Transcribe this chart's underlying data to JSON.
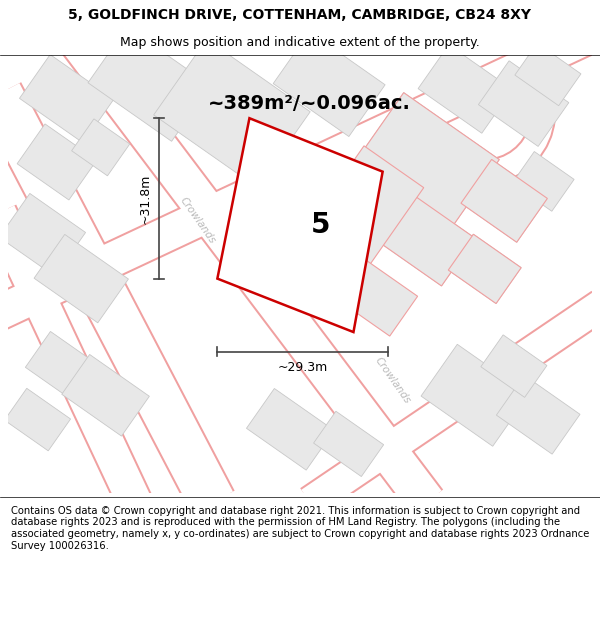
{
  "title": "5, GOLDFINCH DRIVE, COTTENHAM, CAMBRIDGE, CB24 8XY",
  "subtitle": "Map shows position and indicative extent of the property.",
  "area_text": "~389m²/~0.096ac.",
  "width_label": "~29.3m",
  "height_label": "~31.8m",
  "plot_number": "5",
  "road_label1": "Crowlands",
  "road_label2": "Crowlands",
  "footer": "Contains OS data © Crown copyright and database right 2021. This information is subject to Crown copyright and database rights 2023 and is reproduced with the permission of HM Land Registry. The polygons (including the associated geometry, namely x, y co-ordinates) are subject to Crown copyright and database rights 2023 Ordnance Survey 100026316.",
  "map_bg": "#f7f7f7",
  "road_outline_color": "#f0a0a0",
  "road_fill_color": "#ffffff",
  "building_fill": "#e8e8e8",
  "building_edge": "#c8c8c8",
  "highlight_color": "#cc0000",
  "dim_line_color": "#444444",
  "title_fontsize": 10,
  "subtitle_fontsize": 9,
  "area_fontsize": 16,
  "label_fontsize": 9,
  "footer_fontsize": 7.2
}
